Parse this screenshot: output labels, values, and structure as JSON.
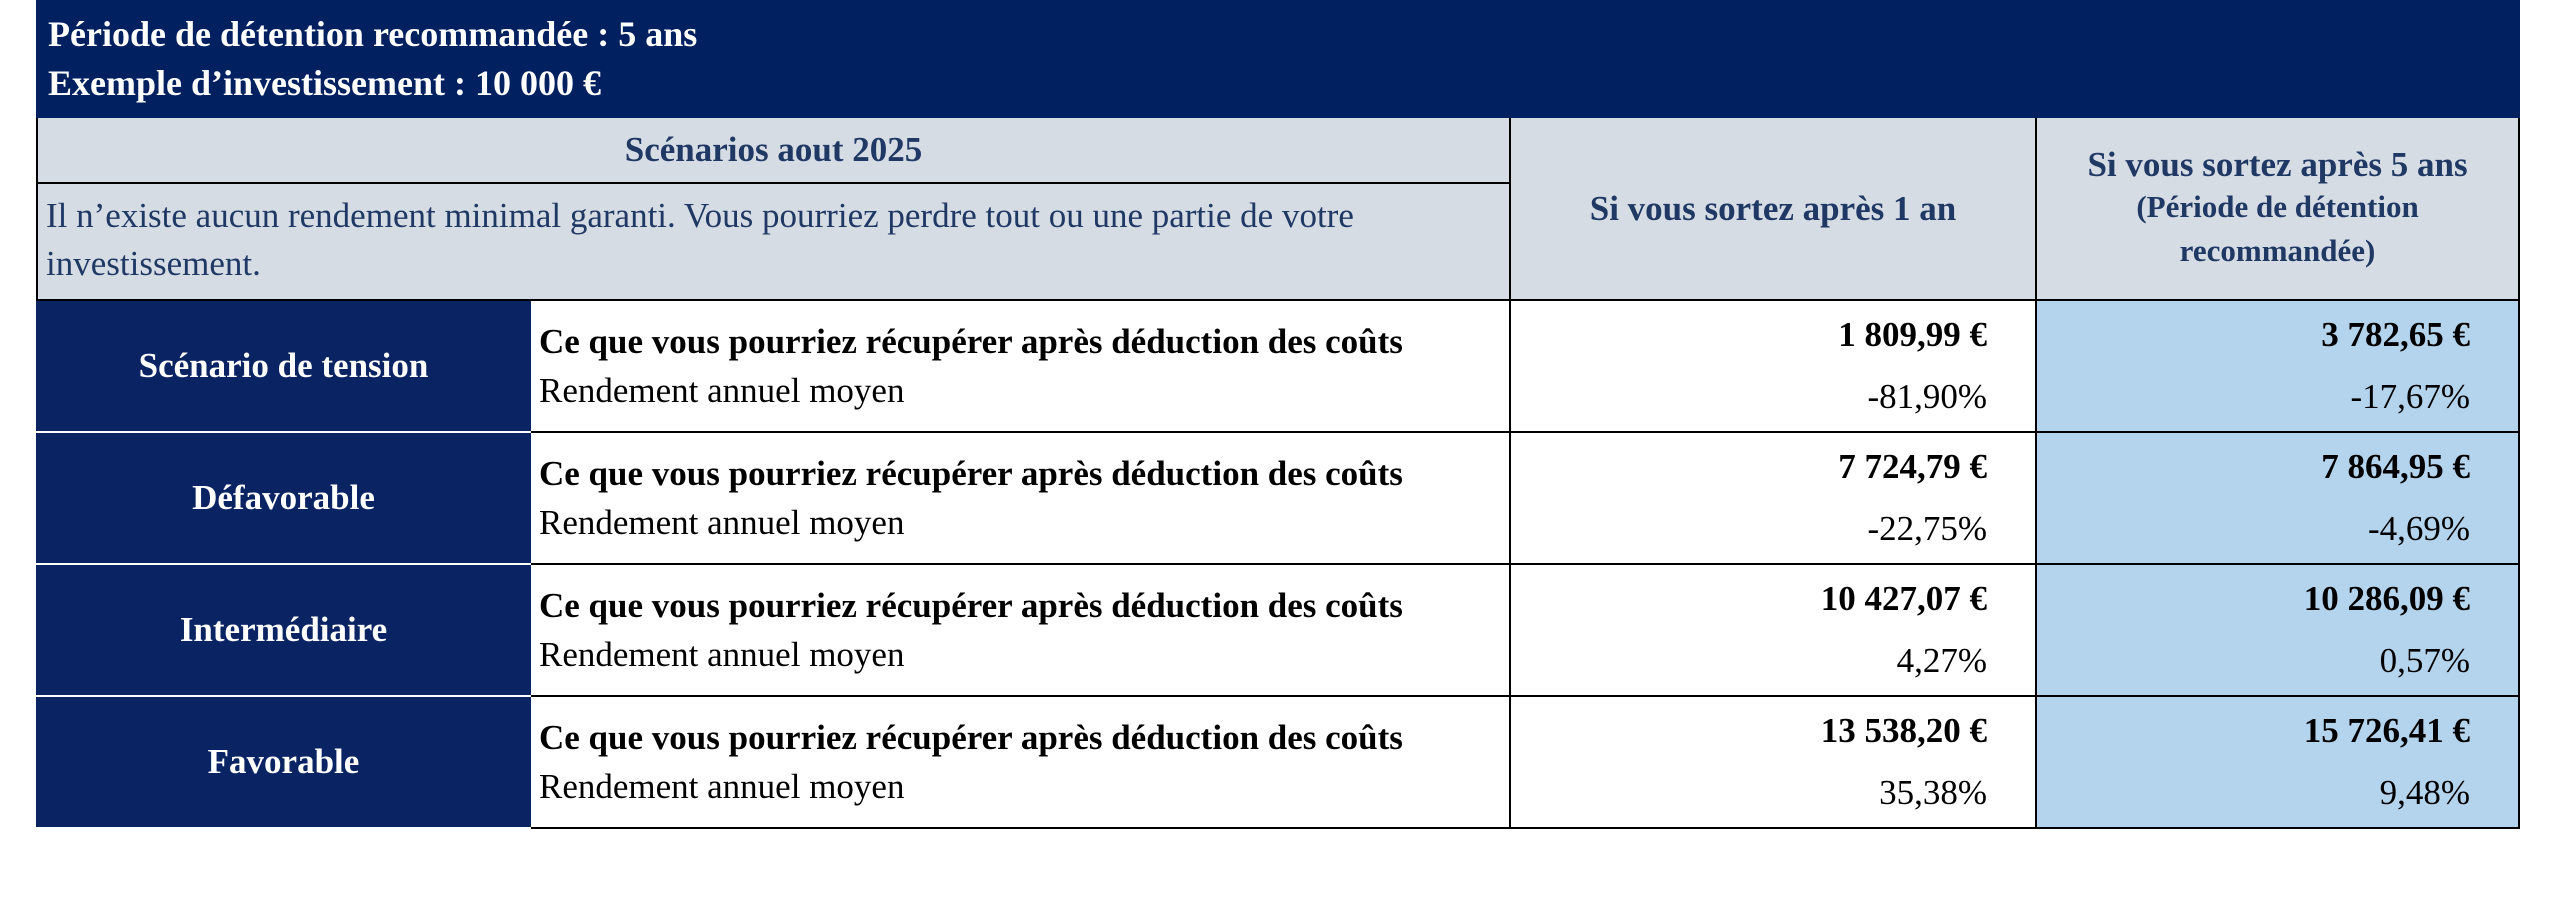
{
  "header": {
    "line1": "Période de détention recommandée : 5 ans",
    "line2": "Exemple d’investissement : 10 000 €"
  },
  "table": {
    "scenarios_title": "Scénarios aout 2025",
    "disclaimer": "Il n’existe aucun rendement minimal garanti. Vous pourriez perdre tout ou une partie de votre investissement.",
    "col_1_year": "Si vous sortez après 1 an",
    "col_5_years": "Si vous sortez après 5 ans",
    "col_5_years_note": "(Période de détention recommandée)",
    "rows": [
      {
        "name": "Scénario de tension",
        "desc_bold": "Ce que vous pourriez récupérer après déduction des coûts",
        "desc_rest": "Rendement annuel moyen",
        "amount_1": "1 809,99 €",
        "pct_1": "-81,90%",
        "amount_5": "3 782,65 €",
        "pct_5": "-17,67%"
      },
      {
        "name": "Défavorable",
        "desc_bold": "Ce que vous pourriez récupérer après déduction des coûts",
        "desc_rest": "Rendement annuel moyen",
        "amount_1": "7 724,79 €",
        "pct_1": "-22,75%",
        "amount_5": "7 864,95 €",
        "pct_5": "-4,69%"
      },
      {
        "name": "Intermédiaire",
        "desc_bold": "Ce que vous pourriez récupérer après déduction des coûts",
        "desc_rest": "Rendement annuel moyen",
        "amount_1": "10 427,07 €",
        "pct_1": "4,27%",
        "amount_5": "10 286,09 €",
        "pct_5": "0,57%"
      },
      {
        "name": "Favorable",
        "desc_bold": "Ce que vous pourriez récupérer après déduction des coûts",
        "desc_rest": "Rendement annuel moyen",
        "amount_1": "13 538,20 €",
        "pct_1": "35,38%",
        "amount_5": "15 726,41 €",
        "pct_5": "9,48%"
      }
    ]
  }
}
